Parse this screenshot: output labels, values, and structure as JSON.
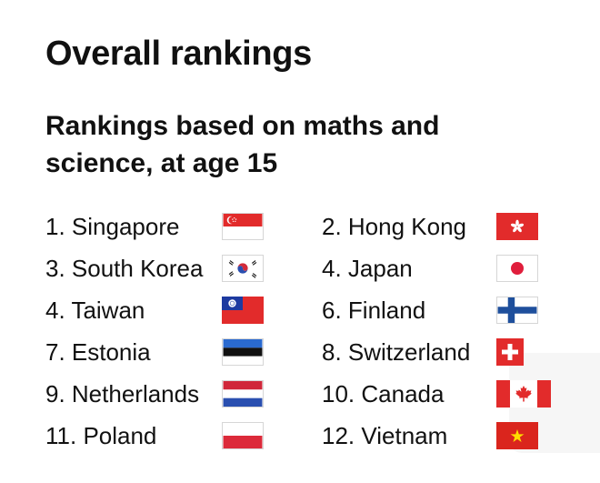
{
  "title": "Overall rankings",
  "subtitle": "Rankings based on maths and science, at age 15",
  "rankings_left": [
    {
      "label": "1. Singapore",
      "flag": "singapore-flag"
    },
    {
      "label": "3. South Korea",
      "flag": "south-korea-flag"
    },
    {
      "label": "4. Taiwan",
      "flag": "taiwan-flag"
    },
    {
      "label": "7. Estonia",
      "flag": "estonia-flag"
    },
    {
      "label": "9. Netherlands",
      "flag": "netherlands-flag"
    },
    {
      "label": "11. Poland",
      "flag": "poland-flag"
    }
  ],
  "rankings_right": [
    {
      "label": "2. Hong Kong",
      "flag": "hong-kong-flag"
    },
    {
      "label": "4. Japan",
      "flag": "japan-flag"
    },
    {
      "label": "6. Finland",
      "flag": "finland-flag"
    },
    {
      "label": "8. Switzerland",
      "flag": "switzerland-flag"
    },
    {
      "label": "10. Canada",
      "flag": "canada-flag"
    },
    {
      "label": "12. Vietnam",
      "flag": "vietnam-flag"
    }
  ],
  "colors": {
    "text": "#111111",
    "red": "#e22b2b",
    "blue": "#2a4fb0",
    "finland_blue": "#1e4f9c"
  }
}
